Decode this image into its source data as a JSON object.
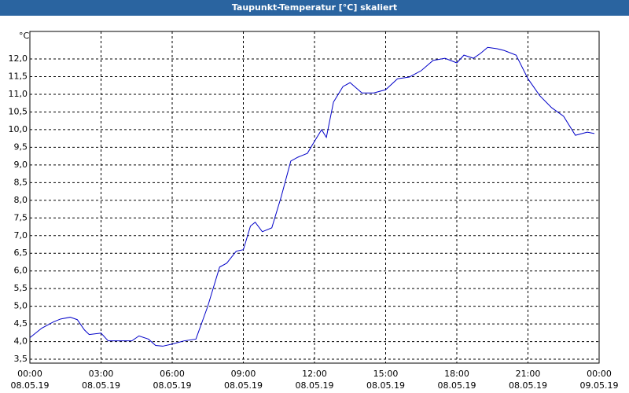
{
  "chart_data": {
    "type": "line",
    "title": "Taupunkt-Temperatur [°C] skaliert",
    "y_unit": "°C",
    "x": [
      0,
      0.5,
      1,
      1.3,
      1.7,
      2,
      2.3,
      2.5,
      3,
      3.3,
      4,
      4.3,
      4.6,
      5,
      5.3,
      5.6,
      6,
      6.5,
      7,
      7.5,
      8,
      8.3,
      8.7,
      9,
      9.3,
      9.5,
      9.8,
      10.2,
      10.6,
      11,
      11.3,
      11.7,
      12,
      12.3,
      12.5,
      12.8,
      13.2,
      13.5,
      14,
      14.5,
      15,
      15.5,
      16,
      16.5,
      17,
      17.5,
      18,
      18.3,
      18.7,
      19,
      19.3,
      19.7,
      20,
      20.5,
      21,
      21.5,
      22,
      22.5,
      23,
      23.5,
      23.8
    ],
    "series": [
      {
        "name": "Taupunkt-Temperatur",
        "color": "#0000c8",
        "values": [
          4.11,
          4.38,
          4.56,
          4.64,
          4.69,
          4.62,
          4.33,
          4.2,
          4.24,
          4.02,
          4.02,
          4.02,
          4.16,
          4.07,
          3.89,
          3.87,
          3.93,
          4.02,
          4.07,
          5.0,
          6.11,
          6.22,
          6.56,
          6.6,
          7.27,
          7.38,
          7.11,
          7.22,
          8.11,
          9.11,
          9.22,
          9.33,
          9.67,
          10.0,
          9.78,
          10.78,
          11.22,
          11.33,
          11.04,
          11.04,
          11.13,
          11.44,
          11.49,
          11.67,
          11.96,
          12.02,
          11.89,
          12.11,
          12.02,
          12.16,
          12.33,
          12.29,
          12.24,
          12.11,
          11.44,
          10.96,
          10.62,
          10.38,
          9.84,
          9.93,
          9.89
        ]
      }
    ],
    "xlim": [
      0,
      24
    ],
    "xticks": [
      {
        "value": 0,
        "label": "00:00",
        "date": "08.05.19"
      },
      {
        "value": 3,
        "label": "03:00",
        "date": "08.05.19"
      },
      {
        "value": 6,
        "label": "06:00",
        "date": "08.05.19"
      },
      {
        "value": 9,
        "label": "09:00",
        "date": "08.05.19"
      },
      {
        "value": 12,
        "label": "12:00",
        "date": "08.05.19"
      },
      {
        "value": 15,
        "label": "15:00",
        "date": "08.05.19"
      },
      {
        "value": 18,
        "label": "18:00",
        "date": "08.05.19"
      },
      {
        "value": 21,
        "label": "21:00",
        "date": "08.05.19"
      },
      {
        "value": 24,
        "label": "00:00",
        "date": "09.05.19"
      }
    ],
    "ylim": [
      3.39,
      12.78
    ],
    "yticks": [
      {
        "value": 3.5,
        "label": "3,5"
      },
      {
        "value": 4,
        "label": "4,0"
      },
      {
        "value": 4.5,
        "label": "4,5"
      },
      {
        "value": 5,
        "label": "5,0"
      },
      {
        "value": 5.5,
        "label": "5,5"
      },
      {
        "value": 6,
        "label": "6,0"
      },
      {
        "value": 6.5,
        "label": "6,5"
      },
      {
        "value": 7,
        "label": "7,0"
      },
      {
        "value": 7.5,
        "label": "7,5"
      },
      {
        "value": 8,
        "label": "8,0"
      },
      {
        "value": 8.5,
        "label": "8,5"
      },
      {
        "value": 9,
        "label": "9,0"
      },
      {
        "value": 9.5,
        "label": "9,5"
      },
      {
        "value": 10,
        "label": "10,0"
      },
      {
        "value": 10.5,
        "label": "10,5"
      },
      {
        "value": 11,
        "label": "11,0"
      },
      {
        "value": 11.5,
        "label": "11,5"
      },
      {
        "value": 12,
        "label": "12,0"
      }
    ],
    "grid": true
  }
}
